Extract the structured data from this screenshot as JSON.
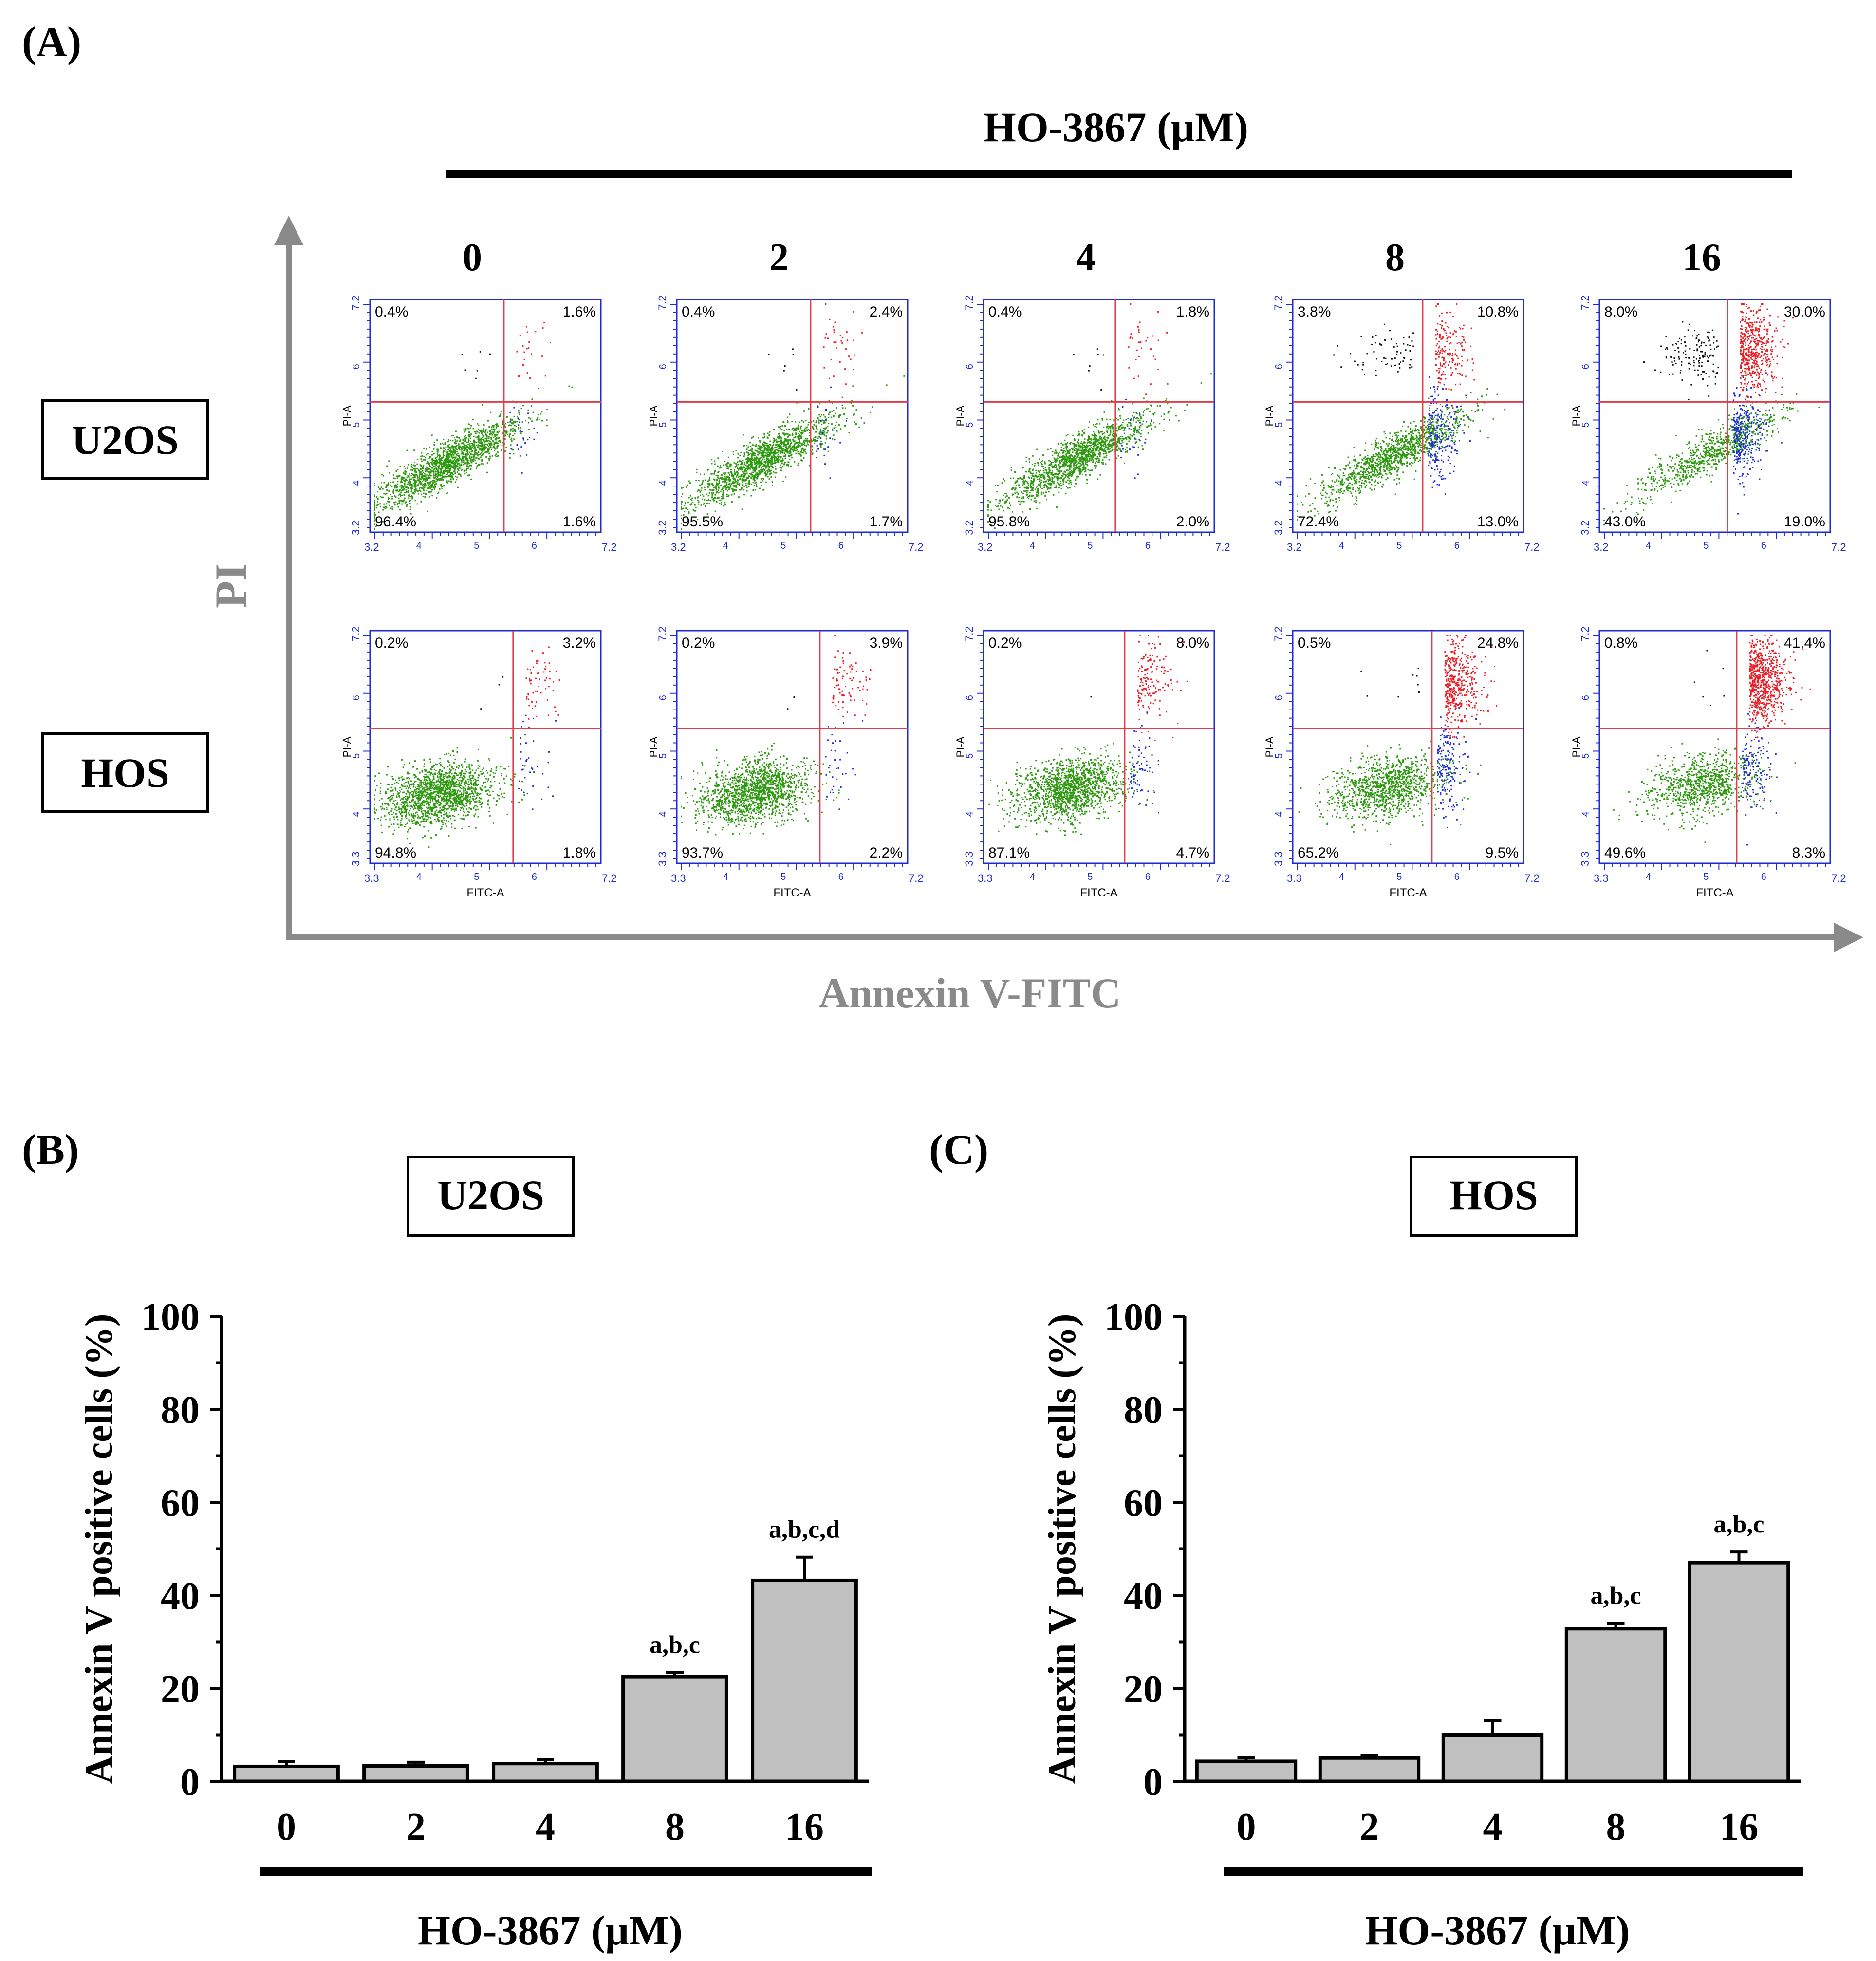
{
  "panels": {
    "a_label": "(A)",
    "b_label": "(B)",
    "c_label": "(C)"
  },
  "flow": {
    "treatment_title": "HO-3867 (µM)",
    "doses": [
      "0",
      "2",
      "4",
      "8",
      "16"
    ],
    "y_axis_label": "PI",
    "x_axis_label": "Annexin V-FITC",
    "plot_y_axis_label": "PI-A",
    "plot_x_axis_label": "FITC-A",
    "rows": [
      {
        "cell_line": "U2OS",
        "tick_label_start": "3.2",
        "tick_label_end": "7.2",
        "minor_decades": [
          "4",
          "5",
          "6"
        ],
        "quadrants": [
          {
            "ul": "0.4%",
            "ur": "1.6%",
            "ll": "96.4%",
            "lr": "1.6%"
          },
          {
            "ul": "0.4%",
            "ur": "2.4%",
            "ll": "95.5%",
            "lr": "1.7%"
          },
          {
            "ul": "0.4%",
            "ur": "1.8%",
            "ll": "95.8%",
            "lr": "2.0%"
          },
          {
            "ul": "3.8%",
            "ur": "10.8%",
            "ll": "72.4%",
            "lr": "13.0%"
          },
          {
            "ul": "8.0%",
            "ur": "30.0%",
            "ll": "43.0%",
            "lr": "19.0%"
          }
        ]
      },
      {
        "cell_line": "HOS",
        "tick_label_start": "3.3",
        "tick_label_end": "7.2",
        "minor_decades": [
          "4",
          "5",
          "6"
        ],
        "quadrants": [
          {
            "ul": "0.2%",
            "ur": "3.2%",
            "ll": "94.8%",
            "lr": "1.8%"
          },
          {
            "ul": "0.2%",
            "ur": "3.9%",
            "ll": "93.7%",
            "lr": "2.2%"
          },
          {
            "ul": "0.2%",
            "ur": "8.0%",
            "ll": "87.1%",
            "lr": "4.7%"
          },
          {
            "ul": "0.5%",
            "ur": "24.8%",
            "ll": "65.2%",
            "lr": "9.5%"
          },
          {
            "ul": "0.8%",
            "ur": "41.4%",
            "ll": "49.6%",
            "lr": "8.3%"
          }
        ]
      }
    ],
    "colors": {
      "live": "#2e9a10",
      "early": "#1f2be0",
      "late": "#ee1c24",
      "necrotic": "#111111",
      "gate": "#e03c4a",
      "frame": "#1d2bcf",
      "axis_arrow": "#8a8a8a"
    }
  },
  "chart_data": [
    {
      "type": "bar",
      "title": "U2OS",
      "categories": [
        "0",
        "2",
        "4",
        "8",
        "16"
      ],
      "values": [
        3.2,
        3.3,
        3.8,
        22.5,
        43.2
      ],
      "errors": [
        1.0,
        0.8,
        0.9,
        0.9,
        5.0
      ],
      "annotations": [
        "",
        "",
        "",
        "a,b,c",
        "a,b,c,d"
      ],
      "xlabel": "HO-3867 (µM)",
      "ylabel": "Annexin V positive cells (%)",
      "ylim": [
        0,
        100
      ],
      "yticks": [
        0,
        20,
        40,
        60,
        80,
        100
      ],
      "bar_color": "#c0c0c0",
      "grid": false
    },
    {
      "type": "bar",
      "title": "HOS",
      "categories": [
        "0",
        "2",
        "4",
        "8",
        "16"
      ],
      "values": [
        4.3,
        5.0,
        10.0,
        32.8,
        47.0
      ],
      "errors": [
        0.8,
        0.6,
        3.0,
        1.2,
        2.3
      ],
      "annotations": [
        "",
        "",
        "",
        "a,b,c",
        "a,b,c"
      ],
      "xlabel": "HO-3867 (µM)",
      "ylabel": "Annexin V positive cells (%)",
      "ylim": [
        0,
        100
      ],
      "yticks": [
        0,
        20,
        40,
        60,
        80,
        100
      ],
      "bar_color": "#c0c0c0",
      "grid": false
    }
  ]
}
